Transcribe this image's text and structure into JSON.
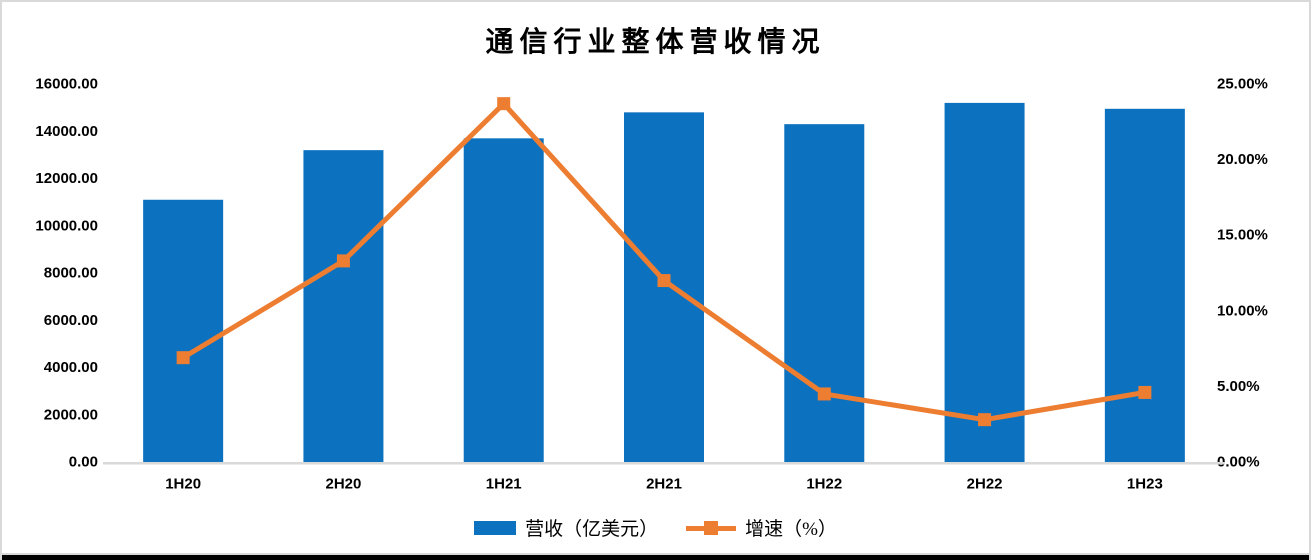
{
  "title": "通信行业整体营收情况",
  "chart_data": {
    "type": "bar",
    "subtype": "bar-line-combo-dual-axis",
    "title": "通信行业整体营收情况",
    "categories": [
      "1H20",
      "2H20",
      "1H21",
      "2H21",
      "1H22",
      "2H22",
      "1H23"
    ],
    "series": [
      {
        "name": "营收（亿美元）",
        "kind": "bar",
        "axis": "left",
        "values": [
          11100,
          13200,
          13700,
          14800,
          14300,
          15200,
          14950
        ]
      },
      {
        "name": "增速（%）",
        "kind": "line",
        "axis": "right",
        "values": [
          6.9,
          13.3,
          23.7,
          12.0,
          4.5,
          2.8,
          4.6
        ]
      }
    ],
    "left_axis": {
      "min": 0,
      "max": 16000,
      "step": 2000,
      "tick_labels": [
        "0.00",
        "2000.00",
        "4000.00",
        "6000.00",
        "8000.00",
        "10000.00",
        "12000.00",
        "14000.00",
        "16000.00"
      ]
    },
    "right_axis": {
      "min": 0,
      "max": 25,
      "step": 5,
      "tick_labels": [
        "0.00%",
        "5.00%",
        "10.00%",
        "15.00%",
        "20.00%",
        "25.00%"
      ]
    },
    "grid": false,
    "legend_position": "bottom"
  },
  "colors": {
    "bar": "#0c71bf",
    "line": "#ed7d31",
    "axis_line": "#d9d9d9",
    "frame_border": "#d9d9d9",
    "bottom_rule": "#000000",
    "text": "#000000"
  }
}
